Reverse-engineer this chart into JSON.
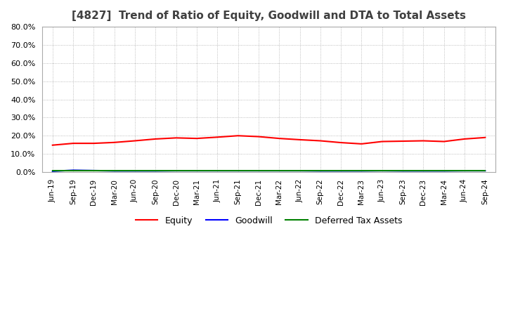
{
  "title": "[4827]  Trend of Ratio of Equity, Goodwill and DTA to Total Assets",
  "ylim": [
    0,
    0.8
  ],
  "yticks": [
    0.0,
    0.1,
    0.2,
    0.3,
    0.4,
    0.5,
    0.6,
    0.7,
    0.8
  ],
  "x_labels": [
    "Jun-19",
    "Sep-19",
    "Dec-19",
    "Mar-20",
    "Jun-20",
    "Sep-20",
    "Dec-20",
    "Mar-21",
    "Jun-21",
    "Sep-21",
    "Dec-21",
    "Mar-22",
    "Jun-22",
    "Sep-22",
    "Dec-22",
    "Mar-23",
    "Jun-23",
    "Sep-23",
    "Dec-23",
    "Mar-24",
    "Jun-24",
    "Sep-24"
  ],
  "equity": [
    0.148,
    0.158,
    0.158,
    0.163,
    0.172,
    0.182,
    0.188,
    0.185,
    0.192,
    0.2,
    0.195,
    0.185,
    0.178,
    0.172,
    0.162,
    0.155,
    0.168,
    0.17,
    0.172,
    0.168,
    0.182,
    0.19
  ],
  "goodwill": [
    0.004,
    0.01,
    0.008,
    0.006,
    0.006,
    0.006,
    0.007,
    0.007,
    0.007,
    0.007,
    0.007,
    0.007,
    0.007,
    0.006,
    0.006,
    0.006,
    0.007,
    0.006,
    0.006,
    0.006,
    0.007,
    0.007
  ],
  "dta": [
    0.006,
    0.006,
    0.006,
    0.006,
    0.006,
    0.006,
    0.006,
    0.006,
    0.006,
    0.006,
    0.006,
    0.006,
    0.006,
    0.006,
    0.006,
    0.006,
    0.006,
    0.006,
    0.006,
    0.006,
    0.006,
    0.006
  ],
  "equity_color": "#FF0000",
  "goodwill_color": "#0000FF",
  "dta_color": "#008000",
  "bg_color": "#FFFFFF",
  "plot_bg_color": "#FFFFFF",
  "grid_color": "#AAAAAA",
  "title_color": "#404040",
  "legend_labels": [
    "Equity",
    "Goodwill",
    "Deferred Tax Assets"
  ]
}
